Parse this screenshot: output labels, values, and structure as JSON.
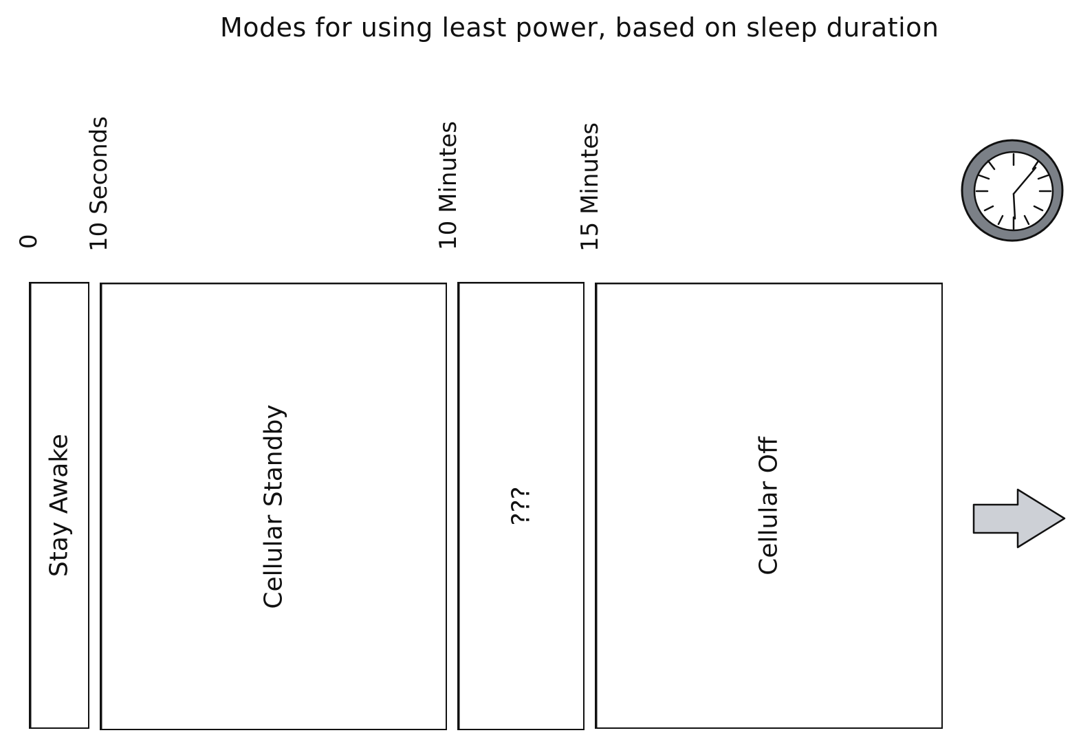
{
  "title": "Modes for using least power, based on sleep duration",
  "timeline": {
    "ticks": [
      {
        "label": "0"
      },
      {
        "label": "10 Seconds"
      },
      {
        "label": "10 Minutes"
      },
      {
        "label": "15 Minutes"
      }
    ]
  },
  "modes": [
    {
      "label": "Stay Awake"
    },
    {
      "label": "Cellular Standby"
    },
    {
      "label": "???"
    },
    {
      "label": "Cellular Off"
    }
  ],
  "icons": {
    "clock": "clock-icon",
    "arrow": "arrow-right-icon"
  },
  "colors": {
    "clock_ring": "#7b8087",
    "arrow_fill": "#cdd0d6",
    "stroke": "#111111"
  }
}
